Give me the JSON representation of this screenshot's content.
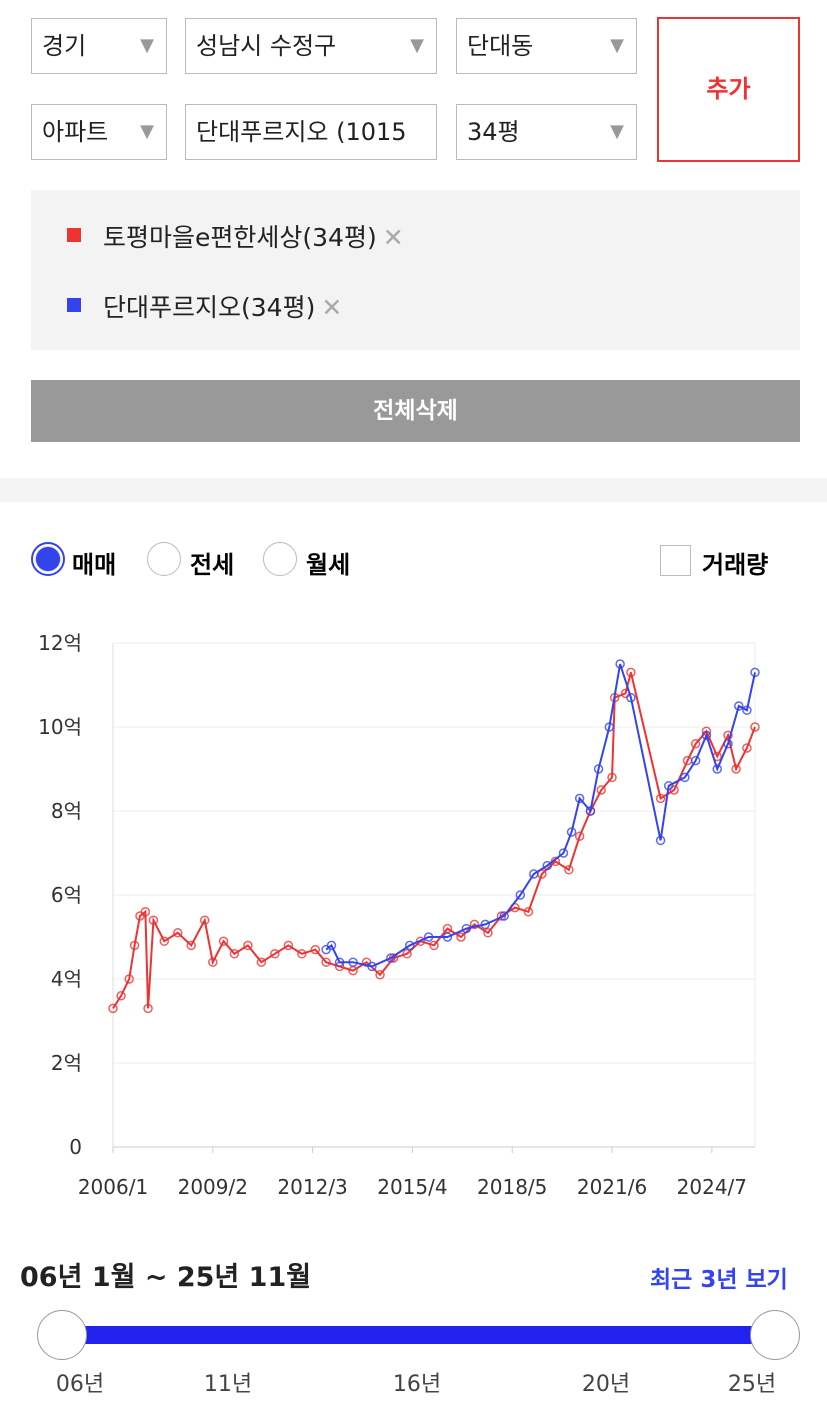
{
  "filters": {
    "row1": [
      "경기",
      "성남시 수정구",
      "단대동"
    ],
    "row2": [
      "아파트",
      "단대푸르지오 (1015",
      "34평"
    ],
    "add_button": "추가"
  },
  "delete_all": "전체삭제",
  "trade_types": [
    "매매",
    "전세",
    "월세"
  ],
  "volume_checkbox": "거래량",
  "chart_data": {
    "type": "line",
    "xlim": [
      "2006/1",
      "2025/11"
    ],
    "xticks": [
      "2006/1",
      "2009/2",
      "2012/3",
      "2015/4",
      "2018/5",
      "2021/6",
      "2024/7"
    ],
    "ylim": [
      0,
      12
    ],
    "yticks": [
      0,
      {
        "value": 2,
        "label": "2억"
      },
      {
        "value": 4,
        "label": "4억"
      },
      {
        "value": 6,
        "label": "6억"
      },
      {
        "value": 8,
        "label": "8억"
      },
      {
        "value": 10,
        "label": "10억"
      },
      {
        "value": 12,
        "label": "12억"
      }
    ],
    "grid": true,
    "series": [
      {
        "name": "토평마을e편한세상(34평)",
        "color": "#ee3333",
        "x": [
          "2006/1",
          "2006/4",
          "2006/7",
          "2006/9",
          "2006/11",
          "2007/1",
          "2007/2",
          "2007/4",
          "2007/8",
          "2008/1",
          "2008/6",
          "2008/11",
          "2009/2",
          "2009/6",
          "2009/10",
          "2010/3",
          "2010/8",
          "2011/1",
          "2011/6",
          "2011/11",
          "2012/4",
          "2012/8",
          "2013/1",
          "2013/6",
          "2013/11",
          "2014/4",
          "2014/9",
          "2015/2",
          "2015/7",
          "2015/12",
          "2016/5",
          "2016/10",
          "2017/3",
          "2017/8",
          "2018/1",
          "2018/6",
          "2018/11",
          "2019/4",
          "2019/9",
          "2020/2",
          "2020/6",
          "2020/10",
          "2021/2",
          "2021/6",
          "2021/7",
          "2021/11",
          "2022/1",
          "2022/12",
          "2023/5",
          "2023/10",
          "2024/1",
          "2024/5",
          "2024/9",
          "2025/1",
          "2025/4",
          "2025/8",
          "2025/11"
        ],
        "values": [
          3.3,
          3.6,
          4.0,
          4.8,
          5.5,
          5.6,
          3.3,
          5.4,
          4.9,
          5.1,
          4.8,
          5.4,
          4.4,
          4.9,
          4.6,
          4.8,
          4.4,
          4.6,
          4.8,
          4.6,
          4.7,
          4.4,
          4.3,
          4.2,
          4.4,
          4.1,
          4.5,
          4.6,
          4.9,
          4.8,
          5.2,
          5.0,
          5.3,
          5.1,
          5.5,
          5.7,
          5.6,
          6.5,
          6.8,
          6.6,
          7.4,
          8.0,
          8.5,
          8.8,
          10.7,
          10.8,
          11.3,
          8.3,
          8.5,
          9.2,
          9.6,
          9.9,
          9.3,
          9.8,
          9.0,
          9.5,
          10.0
        ]
      },
      {
        "name": "단대푸르지오(34평)",
        "color": "#3344ee",
        "x": [
          "2012/8",
          "2012/10",
          "2013/1",
          "2013/6",
          "2014/1",
          "2014/8",
          "2015/3",
          "2015/10",
          "2016/5",
          "2016/12",
          "2017/7",
          "2018/2",
          "2018/8",
          "2019/1",
          "2019/6",
          "2019/12",
          "2020/3",
          "2020/6",
          "2020/10",
          "2021/1",
          "2021/5",
          "2021/9",
          "2022/1",
          "2022/12",
          "2023/3",
          "2023/9",
          "2024/1",
          "2024/5",
          "2024/9",
          "2025/1",
          "2025/5",
          "2025/8",
          "2025/11"
        ],
        "values": [
          4.7,
          4.8,
          4.4,
          4.4,
          4.3,
          4.5,
          4.8,
          5.0,
          5.0,
          5.2,
          5.3,
          5.5,
          6.0,
          6.5,
          6.7,
          7.0,
          7.5,
          8.3,
          8.0,
          9.0,
          10.0,
          11.5,
          10.7,
          7.3,
          8.6,
          8.8,
          9.2,
          9.8,
          9.0,
          9.6,
          10.5,
          10.4,
          11.3
        ]
      }
    ]
  },
  "range": {
    "label": "06년 1월 ~ 25년 11월",
    "recent_link": "최근 3년 보기",
    "ticks": [
      "06년",
      "11년",
      "16년",
      "20년",
      "25년"
    ]
  }
}
